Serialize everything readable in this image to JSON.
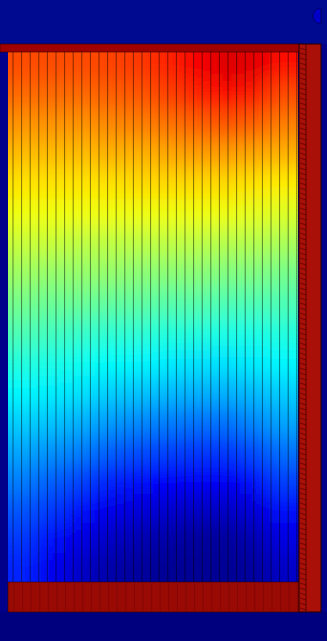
{
  "chart_data": {
    "type": "heatmap",
    "color": "jet",
    "zlim": [
      0,
      1
    ],
    "tick_labels": false,
    "cells": [
      [
        0.8,
        0.8,
        0.8,
        0.81,
        0.82,
        0.84,
        0.88,
        0.91,
        0.9,
        0.86
      ],
      [
        0.77,
        0.77,
        0.77,
        0.78,
        0.79,
        0.81,
        0.84,
        0.86,
        0.85,
        0.8
      ],
      [
        0.73,
        0.73,
        0.73,
        0.74,
        0.75,
        0.76,
        0.78,
        0.79,
        0.78,
        0.75
      ],
      [
        0.69,
        0.69,
        0.69,
        0.7,
        0.7,
        0.71,
        0.72,
        0.72,
        0.71,
        0.7
      ],
      [
        0.65,
        0.65,
        0.65,
        0.65,
        0.66,
        0.66,
        0.66,
        0.66,
        0.65,
        0.64
      ],
      [
        0.61,
        0.61,
        0.61,
        0.61,
        0.61,
        0.61,
        0.61,
        0.61,
        0.6,
        0.59
      ],
      [
        0.57,
        0.57,
        0.56,
        0.56,
        0.56,
        0.56,
        0.56,
        0.55,
        0.55,
        0.54
      ],
      [
        0.53,
        0.52,
        0.52,
        0.52,
        0.51,
        0.51,
        0.51,
        0.5,
        0.5,
        0.49
      ],
      [
        0.49,
        0.48,
        0.48,
        0.47,
        0.47,
        0.46,
        0.46,
        0.45,
        0.45,
        0.45
      ],
      [
        0.45,
        0.44,
        0.43,
        0.42,
        0.42,
        0.41,
        0.41,
        0.4,
        0.4,
        0.41
      ],
      [
        0.41,
        0.4,
        0.39,
        0.38,
        0.37,
        0.36,
        0.35,
        0.35,
        0.36,
        0.37
      ],
      [
        0.37,
        0.36,
        0.35,
        0.33,
        0.32,
        0.31,
        0.3,
        0.3,
        0.31,
        0.33
      ],
      [
        0.33,
        0.32,
        0.3,
        0.28,
        0.26,
        0.25,
        0.24,
        0.24,
        0.26,
        0.29
      ],
      [
        0.29,
        0.27,
        0.25,
        0.22,
        0.2,
        0.19,
        0.18,
        0.18,
        0.2,
        0.24
      ],
      [
        0.25,
        0.22,
        0.19,
        0.16,
        0.14,
        0.13,
        0.12,
        0.12,
        0.14,
        0.19
      ],
      [
        0.21,
        0.18,
        0.14,
        0.11,
        0.09,
        0.08,
        0.07,
        0.07,
        0.09,
        0.14
      ],
      [
        0.18,
        0.14,
        0.1,
        0.07,
        0.05,
        0.04,
        0.03,
        0.03,
        0.05,
        0.1
      ],
      [
        0.16,
        0.11,
        0.07,
        0.04,
        0.03,
        0.02,
        0.02,
        0.02,
        0.03,
        0.07
      ]
    ]
  }
}
